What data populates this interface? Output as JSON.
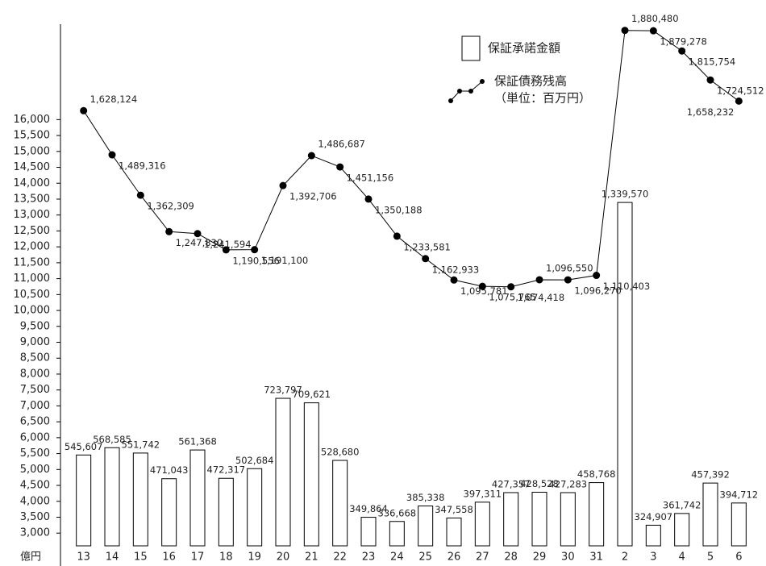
{
  "chart_data": {
    "type": "bar",
    "y_unit": "億円",
    "note": "（単位：百万円）",
    "categories": [
      "13",
      "14",
      "15",
      "16",
      "17",
      "18",
      "19",
      "20",
      "21",
      "22",
      "23",
      "24",
      "25",
      "26",
      "27",
      "28",
      "29",
      "30",
      "31",
      "2",
      "3",
      "4",
      "5",
      "6"
    ],
    "series": [
      {
        "name": "保証承諾金額",
        "type": "bar",
        "color": "#000000",
        "fill": "#ffffff",
        "values": [
          5456.07,
          5685.85,
          5517.42,
          4710.43,
          5613.68,
          4723.17,
          5026.84,
          7237.97,
          7096.21,
          5286.8,
          3498.64,
          3366.68,
          3853.38,
          3475.58,
          3973.11,
          4273.57,
          4285.28,
          4272.83,
          4587.68,
          13395.7,
          3249.07,
          3617.42,
          4573.92,
          3947.12
        ],
        "value_labels": [
          "545,607",
          "568,585",
          "551,742",
          "471,043",
          "561,368",
          "472,317",
          "502,684",
          "723,797",
          "709,621",
          "528,680",
          "349,864",
          "336,668",
          "385,338",
          "347,558",
          "397,311",
          "427,357",
          "428,528",
          "427,283",
          "458,768",
          "1,339,570",
          "324,907",
          "361,742",
          "457,392",
          "394,712"
        ]
      },
      {
        "name": "保証債務残高",
        "type": "line",
        "color": "#000000",
        "values": [
          16281.24,
          14893.16,
          13623.09,
          12478.3,
          12415.94,
          11905.56,
          11911.0,
          13927.06,
          14866.87,
          14511.56,
          13501.88,
          12335.81,
          11629.33,
          10957.81,
          10757.65,
          10744.18,
          10965.5,
          10962.7,
          11104.03,
          18804.8,
          18792.78,
          18157.54,
          17245.12,
          16582.32
        ],
        "value_labels": [
          "1,628,124",
          "1,489,316",
          "1,362,309",
          "1,247,830",
          "1,241,594",
          "1,190,556",
          "1,191,100",
          "1,392,706",
          "1,486,687",
          "1,451,156",
          "1,350,188",
          "1,233,581",
          "1,162,933",
          "1,095,781",
          "1,075,765",
          "1,074,418",
          "1,096,550",
          "1,096,270",
          "1,110,403",
          "1,880,480",
          "1,879,278",
          "1,815,754",
          "1,724,512",
          "1,658,232"
        ]
      }
    ],
    "ylim": [
      2600,
      19000
    ],
    "yticks": [
      {
        "value": 3000,
        "label": "3,000"
      },
      {
        "value": 3500,
        "label": "3,500"
      },
      {
        "value": 4000,
        "label": "4,000"
      },
      {
        "value": 4500,
        "label": "4,500"
      },
      {
        "value": 5000,
        "label": "5,000"
      },
      {
        "value": 5500,
        "label": "5,500"
      },
      {
        "value": 6000,
        "label": "6,000"
      },
      {
        "value": 6500,
        "label": "6,500"
      },
      {
        "value": 7000,
        "label": "7,000"
      },
      {
        "value": 7500,
        "label": "7,500"
      },
      {
        "value": 8000,
        "label": "8,000"
      },
      {
        "value": 8500,
        "label": "8,500"
      },
      {
        "value": 9000,
        "label": "9,000"
      },
      {
        "value": 9500,
        "label": "9,500"
      },
      {
        "value": 10000,
        "label": "10,000"
      },
      {
        "value": 10500,
        "label": "10,500"
      },
      {
        "value": 11000,
        "label": "11,000"
      },
      {
        "value": 11500,
        "label": "11,500"
      },
      {
        "value": 12000,
        "label": "12,000"
      },
      {
        "value": 12500,
        "label": "12,500"
      },
      {
        "value": 13000,
        "label": "13,000"
      },
      {
        "value": 13500,
        "label": "13,500"
      },
      {
        "value": 14000,
        "label": "14,000"
      },
      {
        "value": 14500,
        "label": "14,500"
      },
      {
        "value": 15000,
        "label": "15,000"
      },
      {
        "value": 15500,
        "label": "15,500"
      },
      {
        "value": 16000,
        "label": "16,000"
      }
    ],
    "grid": false
  }
}
